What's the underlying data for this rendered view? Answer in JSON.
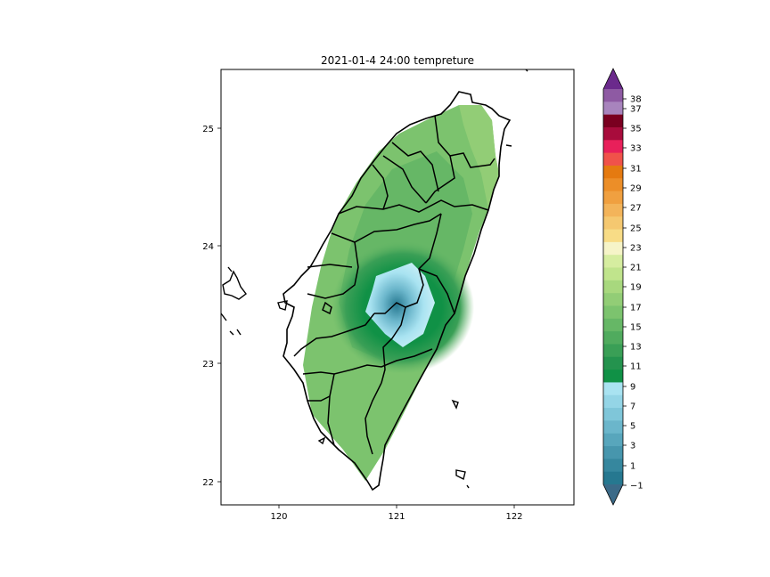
{
  "title": "2021-01-4 24:00 tempreture",
  "map": {
    "x_ticks": [
      "120",
      "121",
      "122"
    ],
    "y_ticks": [
      "25",
      "24",
      "23",
      "22"
    ],
    "xlim": [
      119.5,
      122.5
    ],
    "ylim": [
      21.8,
      25.5
    ]
  },
  "colorbar": {
    "ticks": [
      "38",
      "37",
      "35",
      "33",
      "31",
      "29",
      "27",
      "25",
      "23",
      "21",
      "19",
      "17",
      "15",
      "13",
      "11",
      "9",
      "7",
      "5",
      "3",
      "1",
      "−1"
    ],
    "colors": {
      "top_extend": "#6b2a8c",
      "purples": [
        "#8e5aa3",
        "#a884bd"
      ],
      "reds": [
        "#7a0020",
        "#a80c3c",
        "#e8205a",
        "#f0524a"
      ],
      "oranges": [
        "#e57a10",
        "#ec8e28",
        "#f0a040",
        "#f3b45a",
        "#f5c870",
        "#f8dc86"
      ],
      "pale": "#f6f4c8",
      "light_greens": [
        "#d6eda0",
        "#c0e48c",
        "#a8d87e",
        "#92cd76"
      ],
      "greens": [
        "#7cc36e",
        "#66b766",
        "#50ab5e",
        "#3a9f56",
        "#24934e",
        "#109146"
      ],
      "blues": [
        "#a9e3f1",
        "#94d5e6",
        "#7fc6d9",
        "#6bb6cb",
        "#58a6bc",
        "#4796ad",
        "#36879e",
        "#267890"
      ],
      "bottom_extend": "#3b6a88"
    }
  }
}
